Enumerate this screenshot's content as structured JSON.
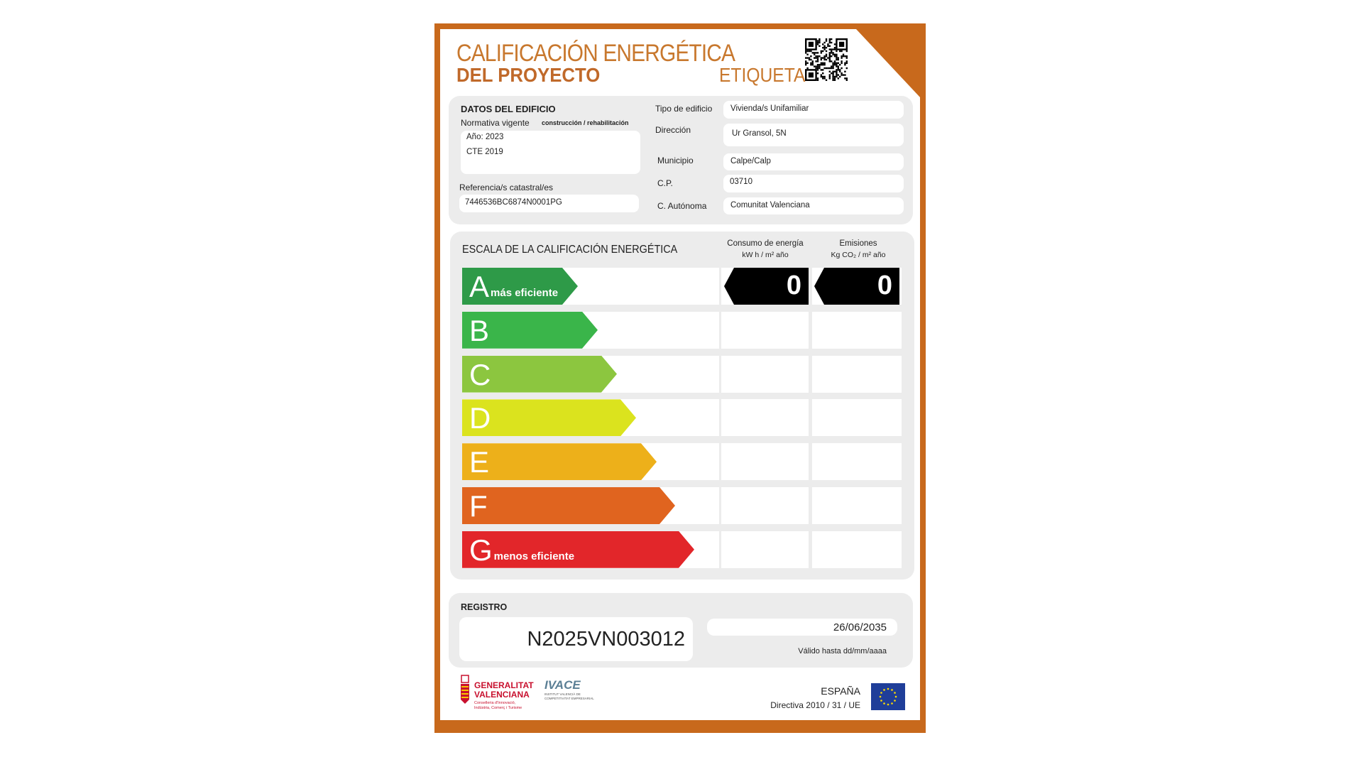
{
  "header": {
    "title_line1": "CALIFICACIÓN ENERGÉTICA",
    "title_line2": "DEL PROYECTO",
    "label": "ETIQUETA",
    "qr_icon": "qr-code-icon"
  },
  "building": {
    "section_title": "DATOS DEL EDIFICIO",
    "normativa_label": "Normativa vigente",
    "normativa_sub": "construcción / rehabilitación",
    "normativa_lines": [
      "Año: 2023",
      "CTE 2019"
    ],
    "catastral_label": "Referencia/s catastral/es",
    "catastral_value": "7446536BC6874N0001PG",
    "fields": [
      {
        "label": "Tipo de edificio",
        "value": "Vivienda/s Unifamiliar"
      },
      {
        "label": "Dirección",
        "value": "Ur Gransol, 5N"
      },
      {
        "label": "Municipio",
        "value": "Calpe/Calp"
      },
      {
        "label": "C.P.",
        "value": "03710"
      },
      {
        "label": "C. Autónoma",
        "value": "Comunitat Valenciana"
      }
    ]
  },
  "scale": {
    "title": "ESCALA DE LA CALIFICACIÓN ENERGÉTICA",
    "col1_title": "Consumo de energía",
    "col1_unit": "kW h / m² año",
    "col2_title": "Emisiones",
    "col2_unit": "Kg CO₂ / m² año",
    "classes": [
      {
        "letter": "A",
        "sub": "más eficiente",
        "color": "#2e9a48"
      },
      {
        "letter": "B",
        "sub": "",
        "color": "#3ab54a"
      },
      {
        "letter": "C",
        "sub": "",
        "color": "#8cc63f"
      },
      {
        "letter": "D",
        "sub": "",
        "color": "#dbe31e"
      },
      {
        "letter": "E",
        "sub": "",
        "color": "#edb01a"
      },
      {
        "letter": "F",
        "sub": "",
        "color": "#e0641f"
      },
      {
        "letter": "G",
        "sub": "menos eficiente",
        "color": "#e2262a"
      }
    ],
    "consumo": {
      "class": "A",
      "value": "0"
    },
    "emisiones": {
      "class": "A",
      "value": "0"
    }
  },
  "registro": {
    "title": "REGISTRO",
    "number": "N2025VN003012",
    "valid_date": "26/06/2035",
    "valid_label": "Válido hasta dd/mm/aaaa"
  },
  "footer": {
    "gv_line1": "GENERALITAT",
    "gv_line2": "VALENCIANA",
    "gv_sub1": "Conselleria d'Innovació,",
    "gv_sub2": "Indústria, Comerç i Turisme",
    "ivace": "IVACE",
    "ivace_sub1": "INSTITUT VALENCIÀ DE",
    "ivace_sub2": "COMPETITIVITAT EMPRESARIAL",
    "country": "ESPAÑA",
    "directive": "Directiva 2010 / 31 / UE"
  },
  "colors": {
    "frame": "#c8691c",
    "title": "#c8782e",
    "indicator": "#000000"
  }
}
